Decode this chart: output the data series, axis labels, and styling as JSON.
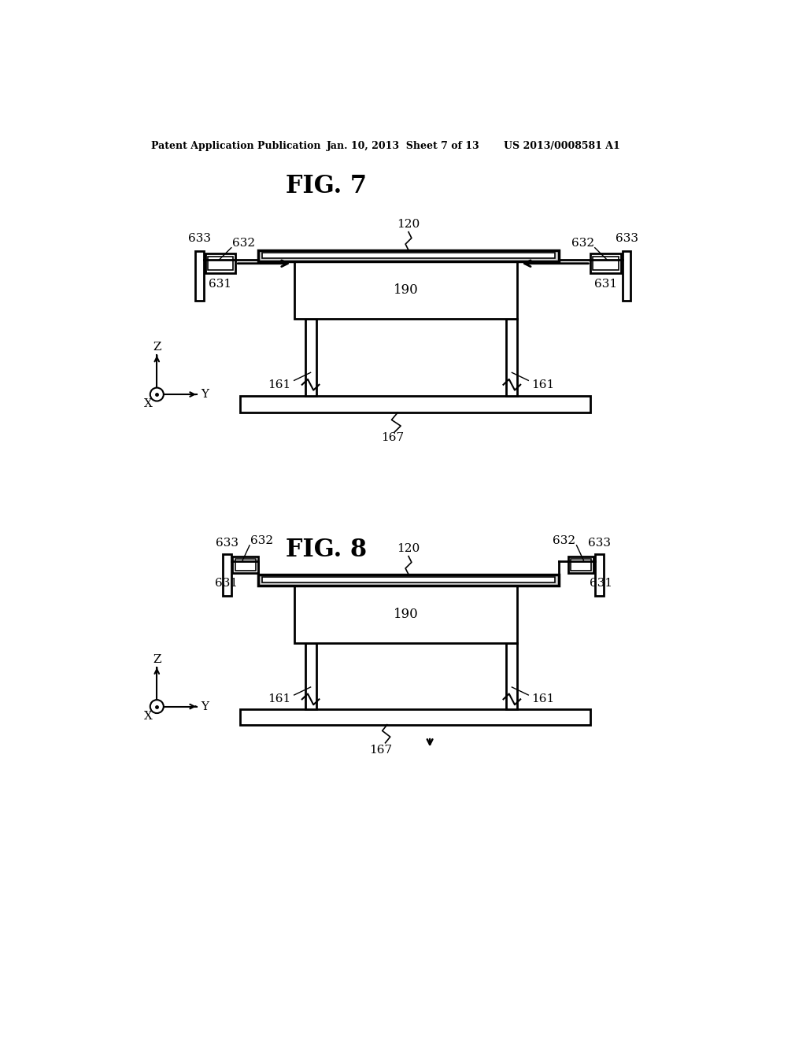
{
  "background_color": "#ffffff",
  "header_left": "Patent Application Publication",
  "header_mid": "Jan. 10, 2013  Sheet 7 of 13",
  "header_right": "US 2013/0008581 A1",
  "fig7_title": "FIG. 7",
  "fig8_title": "FIG. 8",
  "line_color": "#000000",
  "text_color": "#000000"
}
